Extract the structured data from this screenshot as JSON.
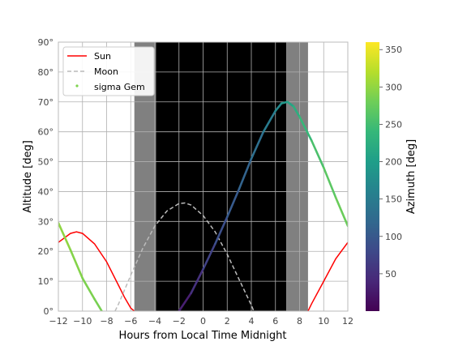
{
  "chart_data": {
    "type": "line",
    "xlabel": "Hours from Local Time Midnight",
    "ylabel": "Altitude [deg]",
    "xlim": [
      -12,
      12
    ],
    "ylim": [
      0,
      90
    ],
    "xticks": [
      "−12",
      "−10",
      "−8",
      "−6",
      "−4",
      "−2",
      "0",
      "2",
      "4",
      "6",
      "8",
      "10",
      "12"
    ],
    "yticks": [
      "0°",
      "10°",
      "20°",
      "30°",
      "40°",
      "50°",
      "60°",
      "70°",
      "80°",
      "90°"
    ],
    "grid": true,
    "legend_position": "top-left",
    "legend": [
      "Sun",
      "Moon",
      "sigma Gem"
    ],
    "twilight_bands": [
      {
        "x0": -5.7,
        "x1": -3.9,
        "color": "#808080"
      },
      {
        "x0": -3.9,
        "x1": 6.9,
        "color": "#000000"
      },
      {
        "x0": 6.9,
        "x1": 8.7,
        "color": "#808080"
      }
    ],
    "series": [
      {
        "name": "Sun",
        "color": "#ff0000",
        "style": "solid",
        "x": [
          -12,
          -11,
          -10.5,
          -10,
          -9,
          -8,
          -7,
          -6.5,
          -6,
          -5.7
        ],
        "y": [
          23,
          26,
          26.5,
          26,
          22.5,
          16.5,
          8.5,
          4.5,
          1,
          0
        ]
      },
      {
        "name": "Sun",
        "color": "#ff0000",
        "style": "solid",
        "x": [
          8.7,
          9,
          10,
          11,
          12
        ],
        "y": [
          0,
          2.5,
          10,
          17.5,
          23
        ]
      },
      {
        "name": "Moon",
        "color": "#bbbbbb",
        "style": "dashed",
        "x": [
          -7.3,
          -7,
          -6,
          -5,
          -4,
          -3,
          -2,
          -1.5,
          -1,
          0,
          1,
          2,
          3,
          4,
          4.2
        ],
        "y": [
          0,
          2.5,
          12,
          21,
          28.5,
          33.5,
          36,
          36.2,
          35.5,
          32,
          26.5,
          19,
          10.5,
          2,
          0
        ]
      }
    ],
    "target_track": {
      "name": "sigma Gem",
      "x": [
        -12,
        -11,
        -10,
        -9,
        -8.4,
        -2,
        -1,
        0,
        1,
        2,
        3,
        4,
        5,
        6,
        6.5,
        7,
        7.5,
        8,
        9,
        10,
        11,
        12
      ],
      "y": [
        29.5,
        20.5,
        11,
        4,
        0,
        0,
        6,
        14,
        22.5,
        31.5,
        41,
        51,
        60,
        67,
        69.5,
        70,
        68.5,
        65,
        57,
        48,
        38,
        28.5
      ],
      "azimuth": [
        302,
        295,
        290,
        286,
        284,
        22,
        40,
        62,
        80,
        95,
        108,
        122,
        138,
        160,
        180,
        200,
        220,
        232,
        250,
        262,
        272,
        282
      ],
      "color_legend_label": "sigma Gem",
      "color_legend_color": "#7ed34f"
    },
    "colorbar": {
      "label": "Azimuth [deg]",
      "min": 0,
      "max": 360,
      "ticks": [
        "50",
        "100",
        "150",
        "200",
        "250",
        "300",
        "350"
      ],
      "tick_values": [
        50,
        100,
        150,
        200,
        250,
        300,
        350
      ],
      "colormap": "viridis",
      "colormap_stops": [
        "#440154",
        "#482878",
        "#3e4989",
        "#31688e",
        "#26828e",
        "#1f9e89",
        "#35b779",
        "#6ece58",
        "#b5de2b",
        "#fde725"
      ]
    }
  }
}
